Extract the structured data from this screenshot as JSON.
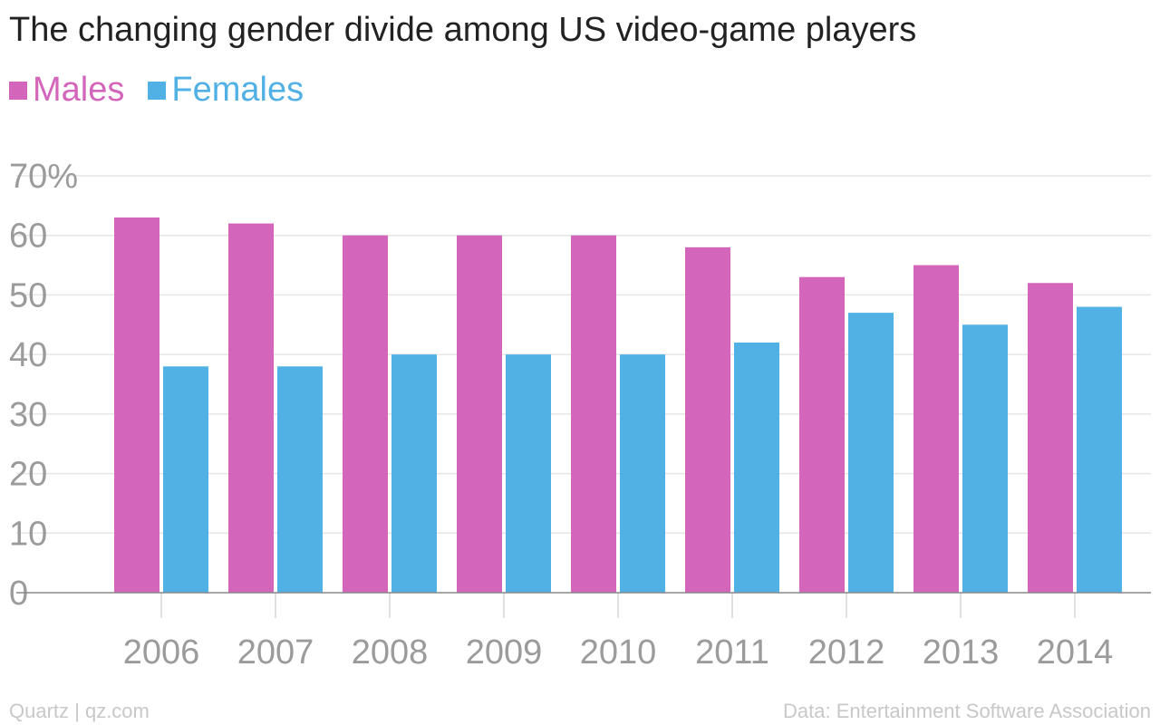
{
  "title": "The changing gender divide among US video-game players",
  "footer": {
    "source_left": "Quartz | qz.com",
    "source_right": "Data: Entertainment Software Association"
  },
  "colors": {
    "males": "#d366bb",
    "females": "#51b1e4",
    "grid": "#e6e6e6",
    "tick_text": "#9b9b9b"
  },
  "chart_data": {
    "type": "bar",
    "categories": [
      "2006",
      "2007",
      "2008",
      "2009",
      "2010",
      "2011",
      "2012",
      "2013",
      "2014"
    ],
    "series": [
      {
        "name": "Males",
        "values": [
          63,
          62,
          60,
          60,
          60,
          58,
          53,
          55,
          52
        ]
      },
      {
        "name": "Females",
        "values": [
          38,
          38,
          40,
          40,
          40,
          42,
          47,
          45,
          48
        ]
      }
    ],
    "ylim": [
      0,
      70
    ],
    "yticks": [
      0,
      10,
      20,
      30,
      40,
      50,
      60,
      70
    ],
    "ytick_labels": [
      "0",
      "10",
      "20",
      "30",
      "40",
      "50",
      "60",
      "70%"
    ],
    "grid": true,
    "legend_position": "top-left"
  }
}
